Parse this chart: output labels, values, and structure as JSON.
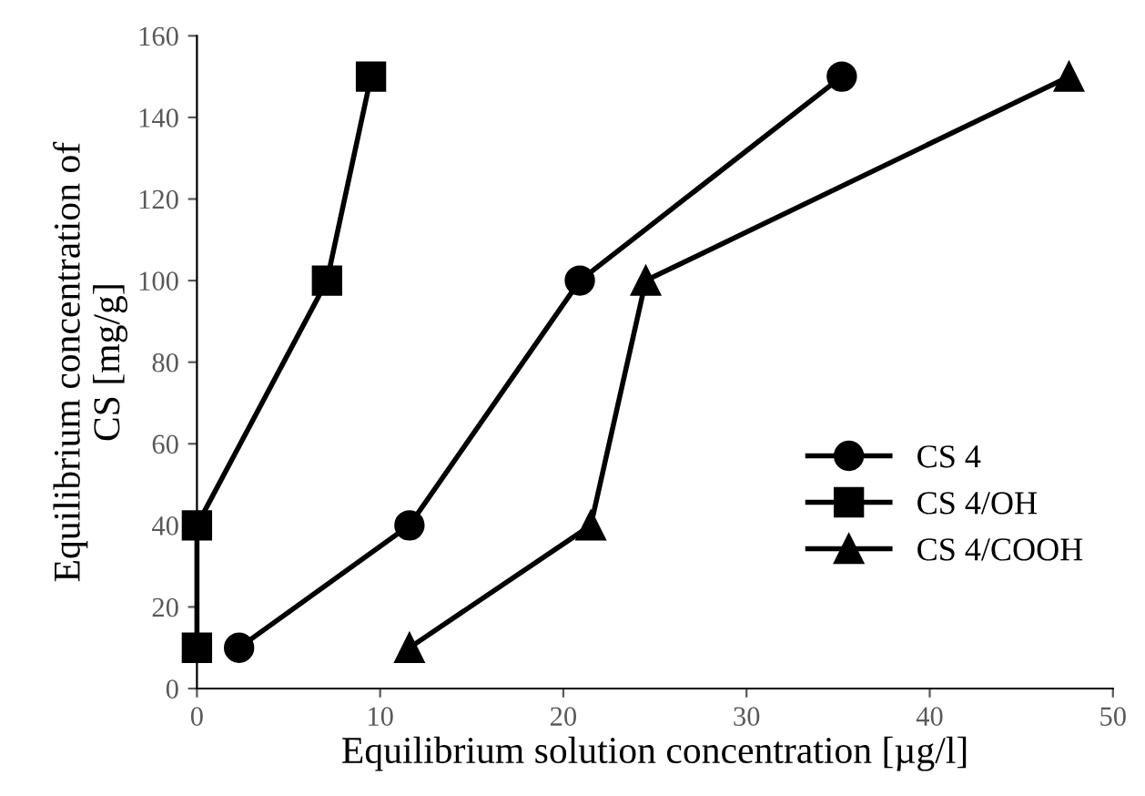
{
  "chart_data": {
    "type": "line",
    "xlabel": "Equilibrium solution concentration [µg/l]",
    "ylabel": "Equilibrium concentration of\nCS [mg/g]",
    "xlim": [
      0,
      50
    ],
    "xticks": [
      0,
      10,
      20,
      30,
      40,
      50
    ],
    "ylim": [
      0,
      160
    ],
    "yticks": [
      0,
      20,
      40,
      60,
      80,
      100,
      120,
      140,
      160
    ],
    "grid": false,
    "legend": "right",
    "line_style": "solid",
    "series": [
      {
        "name": "CS 4",
        "color": "#000000",
        "marker": "circle",
        "x": [
          2.3,
          11.6,
          20.9,
          35.2
        ],
        "values": [
          10,
          40,
          100,
          150
        ]
      },
      {
        "name": "CS 4/OH",
        "color": "#000000",
        "marker": "square",
        "x": [
          0,
          0,
          7.1,
          9.5
        ],
        "values": [
          10,
          40,
          100,
          150
        ]
      },
      {
        "name": "CS 4/COOH",
        "color": "#000000",
        "marker": "triangle",
        "x": [
          11.6,
          21.5,
          24.5,
          47.6
        ],
        "values": [
          10,
          40,
          100,
          150
        ]
      }
    ]
  }
}
